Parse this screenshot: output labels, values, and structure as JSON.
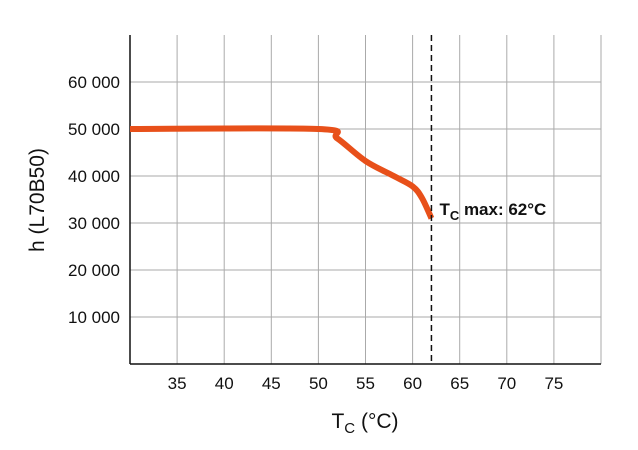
{
  "chart_data": {
    "type": "line",
    "title": "",
    "xlabel": "T",
    "xlabel_sub": "C",
    "xlabel_unit": " (°C)",
    "ylabel": "h (L70B50)",
    "xlim": [
      30,
      80
    ],
    "ylim": [
      0,
      70000
    ],
    "grid": true,
    "xticks": [
      35,
      40,
      45,
      50,
      55,
      60,
      65,
      70,
      75
    ],
    "yticks": [
      10000,
      20000,
      30000,
      40000,
      50000,
      60000
    ],
    "ytick_labels": [
      "10 000",
      "20 000",
      "30 000",
      "40 000",
      "50 000",
      "60 000"
    ],
    "series": [
      {
        "color": "#e8501a",
        "x": [
          30,
          50,
          52,
          55,
          58,
          60,
          61,
          62
        ],
        "y": [
          50000,
          50000,
          48000,
          43200,
          40000,
          37800,
          35300,
          31000
        ]
      }
    ],
    "annotation": {
      "x": 62,
      "line_style": "dashed",
      "label_main": "T",
      "label_sub": "C",
      "label_rest": " max: 62°C"
    }
  }
}
